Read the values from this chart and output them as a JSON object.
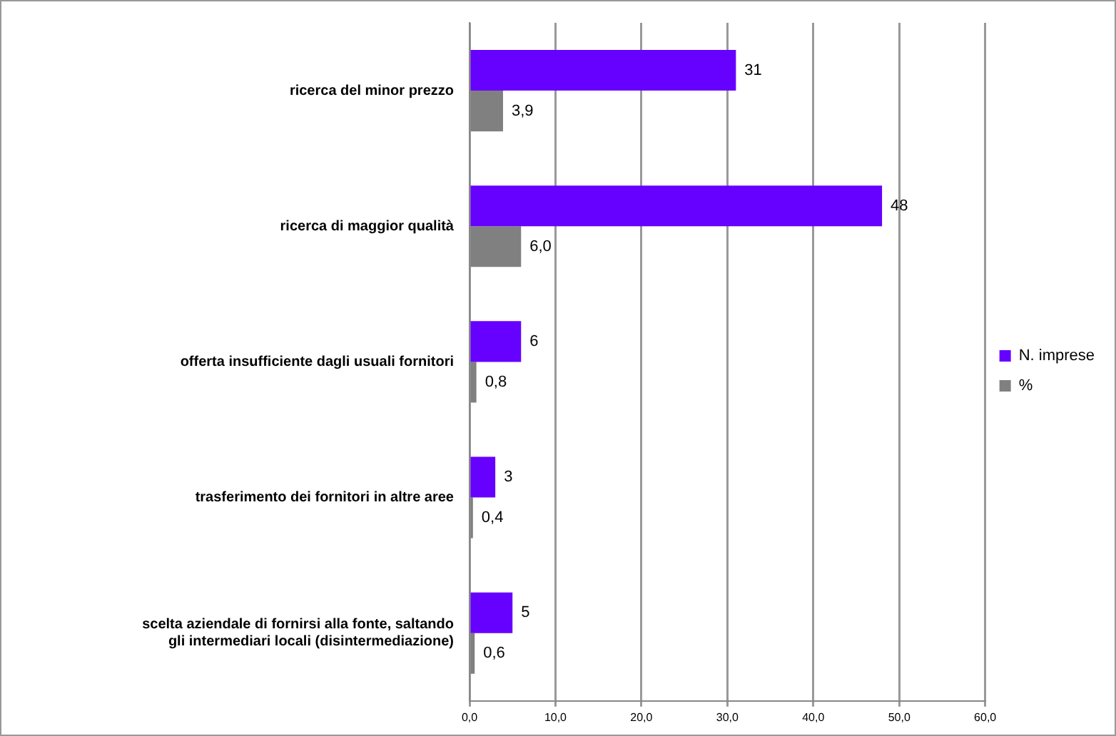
{
  "chart_data": {
    "type": "bar",
    "orientation": "horizontal",
    "categories": [
      "ricerca del minor prezzo",
      "ricerca di maggior qualità",
      "offerta insufficiente dagli usuali fornitori",
      "trasferimento dei fornitori in altre aree",
      "scelta aziendale di fornirsi alla fonte, saltando gli intermediari locali (disintermediazione)"
    ],
    "series": [
      {
        "name": "N. imprese",
        "color": "#6600ff",
        "values": [
          31,
          48,
          6,
          3,
          5
        ],
        "value_labels": [
          "31",
          "48",
          "6",
          "3",
          "5"
        ]
      },
      {
        "name": "%",
        "color": "#808080",
        "values": [
          3.9,
          6.0,
          0.8,
          0.4,
          0.6
        ],
        "value_labels": [
          "3,9",
          "6,0",
          "0,8",
          "0,4",
          "0,6"
        ]
      }
    ],
    "xlim": [
      0,
      60
    ],
    "xticks": [
      {
        "value": 0,
        "label": "0,0"
      },
      {
        "value": 10,
        "label": "10,0"
      },
      {
        "value": 20,
        "label": "20,0"
      },
      {
        "value": 30,
        "label": "30,0"
      },
      {
        "value": 40,
        "label": "40,0"
      },
      {
        "value": 50,
        "label": "50,0"
      },
      {
        "value": 60,
        "label": "60,0"
      }
    ],
    "grid": "x",
    "legend": "right"
  }
}
